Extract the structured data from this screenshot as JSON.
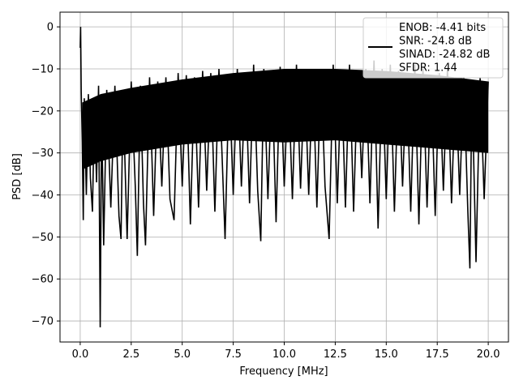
{
  "chart_data": {
    "type": "line",
    "xlabel": "Frequency [MHz]",
    "ylabel": "PSD [dB]",
    "xlim": [
      -0.99,
      20.99
    ],
    "ylim": [
      -75.0,
      3.5
    ],
    "x_ticks": [
      0.0,
      2.5,
      5.0,
      7.5,
      10.0,
      12.5,
      15.0,
      17.5,
      20.0
    ],
    "x_tick_labels": [
      "0.0",
      "2.5",
      "5.0",
      "7.5",
      "10.0",
      "12.5",
      "15.0",
      "17.5",
      "20.0"
    ],
    "y_ticks": [
      0,
      -10,
      -20,
      -30,
      -40,
      -50,
      -60,
      -70
    ],
    "y_tick_labels": [
      "0",
      "−10",
      "−20",
      "−30",
      "−40",
      "−50",
      "−60",
      "−70"
    ],
    "grid": true,
    "legend_position": "top-right",
    "line_color": "#000000",
    "series": [
      {
        "name": "ENOB: -4.41 bits\nSNR: -24.8 dB\nSINAD: -24.82 dB\nSFDR: 1.44",
        "points": [
          [
            0.0,
            -5.0
          ],
          [
            0.02,
            0.0
          ],
          [
            0.05,
            -15.5
          ],
          [
            0.1,
            -27.0
          ],
          [
            0.15,
            -46.0
          ],
          [
            0.2,
            -17.0
          ],
          [
            0.3,
            -40.0
          ],
          [
            0.4,
            -16.0
          ],
          [
            0.5,
            -36.0
          ],
          [
            0.6,
            -44.0
          ],
          [
            0.7,
            -18.0
          ],
          [
            0.8,
            -37.0
          ],
          [
            0.9,
            -14.0
          ],
          [
            0.98,
            -71.5
          ],
          [
            1.05,
            -20.0
          ],
          [
            1.15,
            -52.0
          ],
          [
            1.3,
            -15.0
          ],
          [
            1.5,
            -43.0
          ],
          [
            1.7,
            -14.0
          ],
          [
            1.9,
            -45.0
          ],
          [
            2.0,
            -50.5
          ],
          [
            2.1,
            -16.0
          ],
          [
            2.3,
            -50.5
          ],
          [
            2.5,
            -13.0
          ],
          [
            2.7,
            -38.0
          ],
          [
            2.8,
            -54.5
          ],
          [
            2.95,
            -14.0
          ],
          [
            3.1,
            -42.0
          ],
          [
            3.2,
            -52.0
          ],
          [
            3.4,
            -12.0
          ],
          [
            3.6,
            -45.0
          ],
          [
            3.8,
            -13.0
          ],
          [
            4.0,
            -38.0
          ],
          [
            4.2,
            -12.0
          ],
          [
            4.4,
            -41.0
          ],
          [
            4.6,
            -46.0
          ],
          [
            4.8,
            -11.0
          ],
          [
            5.0,
            -38.0
          ],
          [
            5.2,
            -11.5
          ],
          [
            5.4,
            -47.0
          ],
          [
            5.6,
            -12.0
          ],
          [
            5.8,
            -43.0
          ],
          [
            6.0,
            -10.5
          ],
          [
            6.2,
            -39.0
          ],
          [
            6.4,
            -11.0
          ],
          [
            6.6,
            -44.0
          ],
          [
            6.8,
            -10.0
          ],
          [
            7.1,
            -50.5
          ],
          [
            7.3,
            -12.0
          ],
          [
            7.5,
            -40.0
          ],
          [
            7.7,
            -10.0
          ],
          [
            7.9,
            -38.0
          ],
          [
            8.1,
            -11.0
          ],
          [
            8.3,
            -42.0
          ],
          [
            8.5,
            -9.0
          ],
          [
            8.7,
            -39.0
          ],
          [
            8.85,
            -51.0
          ],
          [
            9.0,
            -10.0
          ],
          [
            9.2,
            -41.0
          ],
          [
            9.4,
            -11.0
          ],
          [
            9.6,
            -46.5
          ],
          [
            9.8,
            -9.5
          ],
          [
            10.0,
            -38.0
          ],
          [
            10.2,
            -12.0
          ],
          [
            10.4,
            -41.0
          ],
          [
            10.6,
            -9.0
          ],
          [
            10.8,
            -38.5
          ],
          [
            11.0,
            -11.0
          ],
          [
            11.2,
            -40.0
          ],
          [
            11.4,
            -10.0
          ],
          [
            11.6,
            -43.0
          ],
          [
            11.8,
            -10.0
          ],
          [
            12.0,
            -38.0
          ],
          [
            12.2,
            -50.5
          ],
          [
            12.4,
            -9.0
          ],
          [
            12.6,
            -42.0
          ],
          [
            12.8,
            -11.0
          ],
          [
            13.0,
            -43.0
          ],
          [
            13.2,
            -9.0
          ],
          [
            13.4,
            -44.0
          ],
          [
            13.6,
            -11.0
          ],
          [
            13.8,
            -36.0
          ],
          [
            14.0,
            -10.0
          ],
          [
            14.2,
            -42.0
          ],
          [
            14.4,
            -8.0
          ],
          [
            14.6,
            -48.0
          ],
          [
            14.8,
            -10.0
          ],
          [
            15.0,
            -41.0
          ],
          [
            15.2,
            -9.0
          ],
          [
            15.4,
            -44.0
          ],
          [
            15.6,
            -10.5
          ],
          [
            15.8,
            -38.0
          ],
          [
            16.0,
            -11.0
          ],
          [
            16.2,
            -44.0
          ],
          [
            16.4,
            -9.0
          ],
          [
            16.6,
            -47.0
          ],
          [
            16.8,
            -10.0
          ],
          [
            17.0,
            -43.0
          ],
          [
            17.2,
            -12.0
          ],
          [
            17.4,
            -45.0
          ],
          [
            17.6,
            -11.0
          ],
          [
            17.8,
            -39.0
          ],
          [
            18.0,
            -10.0
          ],
          [
            18.2,
            -42.0
          ],
          [
            18.4,
            -12.0
          ],
          [
            18.6,
            -40.0
          ],
          [
            18.8,
            -12.0
          ],
          [
            19.0,
            -44.0
          ],
          [
            19.1,
            -57.5
          ],
          [
            19.2,
            -13.0
          ],
          [
            19.4,
            -56.0
          ],
          [
            19.6,
            -12.0
          ],
          [
            19.8,
            -41.0
          ],
          [
            20.0,
            -13.0
          ]
        ],
        "upper_band": [
          [
            0.1,
            -18.0
          ],
          [
            1.0,
            -16.0
          ],
          [
            2.5,
            -14.5
          ],
          [
            5.0,
            -12.5
          ],
          [
            7.5,
            -11.0
          ],
          [
            10.0,
            -10.0
          ],
          [
            12.5,
            -10.0
          ],
          [
            15.0,
            -10.5
          ],
          [
            17.5,
            -11.5
          ],
          [
            20.0,
            -13.0
          ]
        ],
        "lower_band": [
          [
            0.1,
            -34.0
          ],
          [
            1.0,
            -32.0
          ],
          [
            2.5,
            -30.0
          ],
          [
            5.0,
            -28.0
          ],
          [
            7.5,
            -27.0
          ],
          [
            10.0,
            -27.5
          ],
          [
            12.5,
            -27.0
          ],
          [
            15.0,
            -28.0
          ],
          [
            17.5,
            -29.0
          ],
          [
            20.0,
            -30.0
          ]
        ]
      }
    ]
  }
}
